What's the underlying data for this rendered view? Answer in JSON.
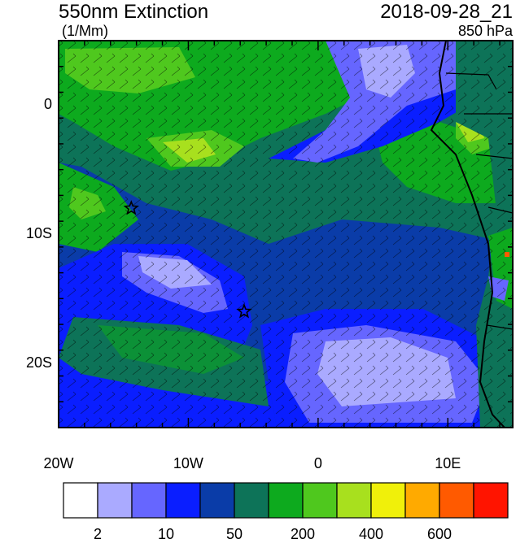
{
  "header": {
    "title": "550nm Extinction",
    "units": "(1/Mm)",
    "datetime": "2018-09-28_21",
    "level": "850 hPa"
  },
  "map": {
    "lon_range": [
      -20,
      15
    ],
    "lat_range": [
      -25,
      5
    ],
    "lat_ticks": [
      {
        "value": 0,
        "label": "0"
      },
      {
        "value": -10,
        "label": "10S"
      },
      {
        "value": -20,
        "label": "20S"
      }
    ],
    "lon_ticks": [
      {
        "value": -20,
        "label": "20W"
      },
      {
        "value": -10,
        "label": "10W"
      },
      {
        "value": 0,
        "label": "0"
      },
      {
        "value": 10,
        "label": "10E"
      }
    ],
    "markers": [
      {
        "lon": -14.4,
        "lat": -8.0,
        "symbol": "star"
      },
      {
        "lon": -5.7,
        "lat": -16.0,
        "symbol": "star"
      }
    ]
  },
  "colorbar": {
    "colors": [
      "#ffffff",
      "#aaaaff",
      "#6666ff",
      "#0a1eff",
      "#0a3ca8",
      "#0d7358",
      "#0daa1e",
      "#4fc81e",
      "#a8e01e",
      "#f0f00a",
      "#ffaa00",
      "#ff5a00",
      "#ff1400"
    ],
    "labels": [
      {
        "text": "2",
        "boundary": 1
      },
      {
        "text": "10",
        "boundary": 3
      },
      {
        "text": "50",
        "boundary": 5
      },
      {
        "text": "200",
        "boundary": 7
      },
      {
        "text": "400",
        "boundary": 9
      },
      {
        "text": "600",
        "boundary": 11
      }
    ]
  }
}
